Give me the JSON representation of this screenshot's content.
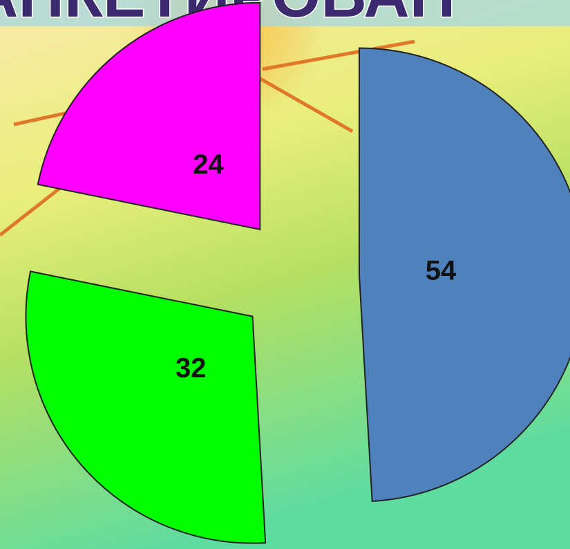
{
  "chart_data": {
    "type": "pie",
    "title": "АНКЕТИРОВАН",
    "categories": [
      null,
      null,
      null
    ],
    "values": [
      54,
      32,
      24
    ],
    "colors": [
      "#4f81bd",
      "#00ff00",
      "#ff00ff"
    ]
  }
}
